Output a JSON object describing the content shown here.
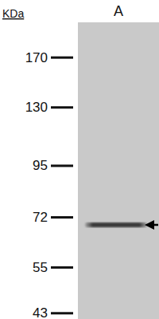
{
  "chart_data": {
    "type": "blot",
    "title": "KDa",
    "categories": [
      "A"
    ],
    "values": [
      69
    ],
    "ylim": [
      205,
      41.6
    ],
    "yticks": [
      170,
      130,
      95,
      72,
      55,
      43
    ],
    "log": "y",
    "grid": false
  }
}
